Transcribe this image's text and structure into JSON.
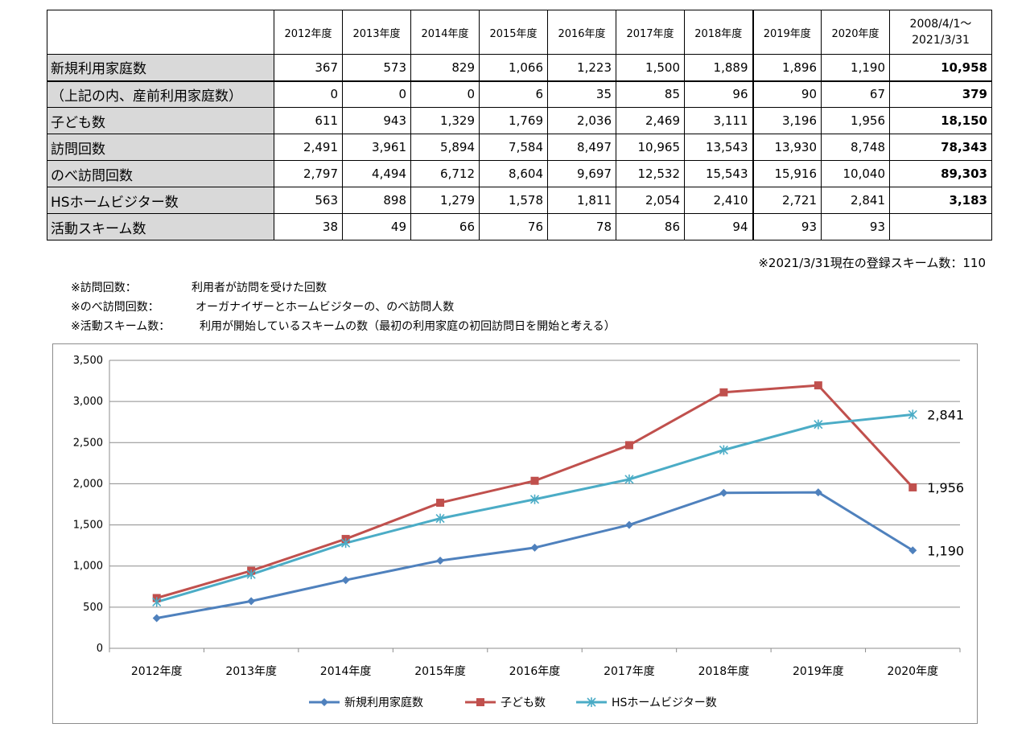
{
  "table": {
    "columns": [
      "2012年度",
      "2013年度",
      "2014年度",
      "2015年度",
      "2016年度",
      "2017年度",
      "2018年度",
      "2019年度",
      "2020年度"
    ],
    "total_header_line1": "2008/4/1～",
    "total_header_line2": "2021/3/31",
    "rows": [
      {
        "label": "新規利用家庭数",
        "values": [
          "367",
          "573",
          "829",
          "1,066",
          "1,223",
          "1,500",
          "1,889",
          "1,896",
          "1,190"
        ],
        "total": "10,958"
      },
      {
        "label": "（上記の内、産前利用家庭数）",
        "values": [
          "0",
          "0",
          "0",
          "6",
          "35",
          "85",
          "96",
          "90",
          "67"
        ],
        "total": "379"
      },
      {
        "label": "子ども数",
        "values": [
          "611",
          "943",
          "1,329",
          "1,769",
          "2,036",
          "2,469",
          "3,111",
          "3,196",
          "1,956"
        ],
        "total": "18,150"
      },
      {
        "label": "訪問回数",
        "values": [
          "2,491",
          "3,961",
          "5,894",
          "7,584",
          "8,497",
          "10,965",
          "13,543",
          "13,930",
          "8,748"
        ],
        "total": "78,343"
      },
      {
        "label": "のべ訪問回数",
        "values": [
          "2,797",
          "4,494",
          "6,712",
          "8,604",
          "9,697",
          "12,532",
          "15,543",
          "15,916",
          "10,040"
        ],
        "total": "89,303"
      },
      {
        "label": "HSホームビジター数",
        "values": [
          "563",
          "898",
          "1,279",
          "1,578",
          "1,811",
          "2,054",
          "2,410",
          "2,721",
          "2,841"
        ],
        "total": "3,183"
      },
      {
        "label": "活動スキーム数",
        "values": [
          "38",
          "49",
          "66",
          "76",
          "78",
          "86",
          "94",
          "93",
          "93"
        ],
        "total": ""
      }
    ]
  },
  "registration_note": "※2021/3/31現在の登録スキーム数：110",
  "notes": [
    {
      "key": "※訪問回数：",
      "text": "利用者が訪問を受けた回数"
    },
    {
      "key": "※のべ訪問回数：",
      "text": "オーガナイザーとホームビジターの、のべ訪問人数"
    },
    {
      "key": "※活動スキーム数：",
      "text": "利用が開始しているスキームの数（最初の利用家庭の初回訪問日を開始と考える）"
    }
  ],
  "chart_data": {
    "type": "line",
    "categories": [
      "2012年度",
      "2013年度",
      "2014年度",
      "2015年度",
      "2016年度",
      "2017年度",
      "2018年度",
      "2019年度",
      "2020年度"
    ],
    "y_ticks": [
      "0",
      "500",
      "1,000",
      "1,500",
      "2,000",
      "2,500",
      "3,000",
      "3,500"
    ],
    "ylim": [
      0,
      3500
    ],
    "grid": true,
    "legend_position": "bottom",
    "series": [
      {
        "name": "新規利用家庭数",
        "values": [
          367,
          573,
          829,
          1066,
          1223,
          1500,
          1889,
          1896,
          1190
        ],
        "color": "#4f81bd",
        "marker": "diamond",
        "end_label": "1,190"
      },
      {
        "name": "子ども数",
        "values": [
          611,
          943,
          1329,
          1769,
          2036,
          2469,
          3111,
          3196,
          1956
        ],
        "color": "#c0504d",
        "marker": "square",
        "end_label": "1,956"
      },
      {
        "name": "HSホームビジター数",
        "values": [
          563,
          898,
          1279,
          1578,
          1811,
          2054,
          2410,
          2721,
          2841
        ],
        "color": "#4bacc6",
        "marker": "asterisk",
        "end_label": "2,841"
      }
    ]
  }
}
